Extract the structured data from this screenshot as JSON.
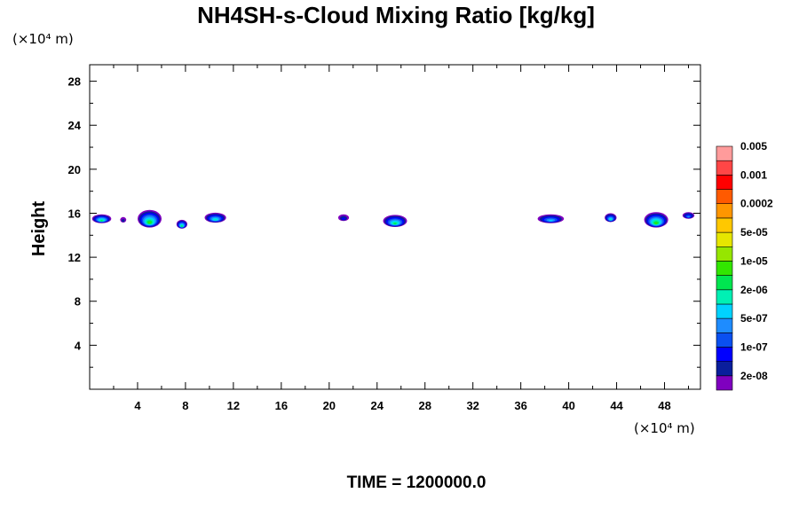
{
  "chart_data": {
    "type": "heatmap",
    "title": "NH4SH-s-Cloud Mixing Ratio [kg/kg]",
    "ylabel": "Height",
    "x_unit": "(×10⁴ m)",
    "y_unit": "(×10⁴ m)",
    "xlim": [
      0,
      51
    ],
    "ylim": [
      0,
      29.5
    ],
    "x_ticks": [
      4,
      8,
      12,
      16,
      20,
      24,
      28,
      32,
      36,
      40,
      44,
      48
    ],
    "y_ticks": [
      4,
      8,
      12,
      16,
      20,
      24,
      28
    ],
    "footer": "TIME = 1200000.0",
    "colorbar": {
      "colors": [
        "#7f00bf",
        "#0a1e9c",
        "#0000ff",
        "#0a50f0",
        "#1e8cff",
        "#00d2ff",
        "#00f0b4",
        "#00e650",
        "#32e600",
        "#96e600",
        "#e6e600",
        "#ffc800",
        "#ff9600",
        "#ff5a00",
        "#ff0000",
        "#ff4646",
        "#ff9b9b"
      ],
      "labels": [
        "2e-08",
        "1e-07",
        "5e-07",
        "2e-06",
        "1e-05",
        "5e-05",
        "0.0002",
        "0.001",
        "0.005"
      ]
    },
    "cloud_blobs": [
      {
        "x_center": 1.0,
        "y_center": 15.5,
        "width": 1.6,
        "height": 0.8,
        "max_level": 7
      },
      {
        "x_center": 2.8,
        "y_center": 15.4,
        "width": 0.5,
        "height": 0.5,
        "max_level": 1
      },
      {
        "x_center": 5.0,
        "y_center": 15.5,
        "width": 2.0,
        "height": 1.6,
        "max_level": 8
      },
      {
        "x_center": 7.7,
        "y_center": 15.0,
        "width": 0.9,
        "height": 0.8,
        "max_level": 7
      },
      {
        "x_center": 10.5,
        "y_center": 15.6,
        "width": 1.8,
        "height": 0.9,
        "max_level": 6
      },
      {
        "x_center": 21.2,
        "y_center": 15.6,
        "width": 0.9,
        "height": 0.6,
        "max_level": 2
      },
      {
        "x_center": 25.5,
        "y_center": 15.3,
        "width": 2.0,
        "height": 1.1,
        "max_level": 7
      },
      {
        "x_center": 38.5,
        "y_center": 15.5,
        "width": 2.2,
        "height": 0.8,
        "max_level": 5
      },
      {
        "x_center": 43.5,
        "y_center": 15.6,
        "width": 1.0,
        "height": 0.8,
        "max_level": 6
      },
      {
        "x_center": 47.3,
        "y_center": 15.4,
        "width": 2.0,
        "height": 1.4,
        "max_level": 8
      },
      {
        "x_center": 50.0,
        "y_center": 15.8,
        "width": 1.0,
        "height": 0.6,
        "max_level": 4
      }
    ]
  }
}
